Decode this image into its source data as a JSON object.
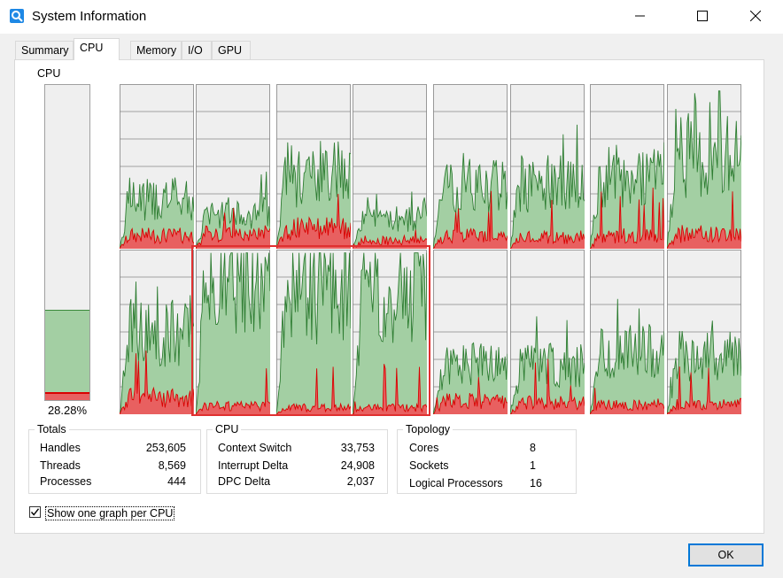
{
  "window": {
    "title": "System Information"
  },
  "tabs": [
    "Summary",
    "CPU",
    "Memory",
    "I/O",
    "GPU"
  ],
  "active_tab": "CPU",
  "overall": {
    "label": "CPU",
    "percent_text": "28.28%",
    "usage_fraction": 0.2828,
    "kernel_fraction": 0.02
  },
  "totals": {
    "title": "Totals",
    "rows": [
      {
        "label": "Handles",
        "value": "253,605"
      },
      {
        "label": "Threads",
        "value": "8,569"
      },
      {
        "label": "Processes",
        "value": "444"
      }
    ]
  },
  "cpu_stats": {
    "title": "CPU",
    "rows": [
      {
        "label": "Context Switch",
        "value": "33,753"
      },
      {
        "label": "Interrupt Delta",
        "value": "24,908"
      },
      {
        "label": "DPC Delta",
        "value": "2,037"
      }
    ]
  },
  "topology": {
    "title": "Topology",
    "rows": [
      {
        "label": "Cores",
        "value": "8"
      },
      {
        "label": "Sockets",
        "value": "1"
      },
      {
        "label": "Logical Processors",
        "value": "16"
      }
    ]
  },
  "show_one_graph": {
    "label": "Show one graph per CPU",
    "checked": true
  },
  "ok_button": "OK",
  "colors": {
    "graph_fill": "#a3cfa3",
    "graph_line": "#2e7d32",
    "kernel_fill": "#e86060",
    "kernel_line": "#d90000",
    "highlight": "#e03030",
    "accent": "#0078d7"
  },
  "per_cpu_usage": [
    0.3,
    0.22,
    0.45,
    0.18,
    0.38,
    0.4,
    0.45,
    0.55,
    0.5,
    0.85,
    0.75,
    0.78,
    0.3,
    0.3,
    0.38,
    0.35
  ],
  "per_cpu_kernel": [
    0.08,
    0.09,
    0.12,
    0.05,
    0.08,
    0.07,
    0.08,
    0.09,
    0.1,
    0.05,
    0.04,
    0.04,
    0.08,
    0.07,
    0.06,
    0.06
  ]
}
